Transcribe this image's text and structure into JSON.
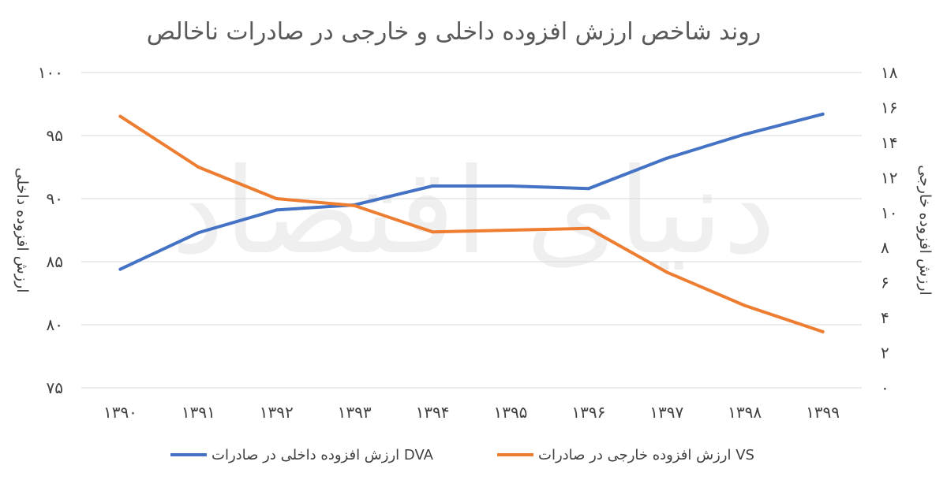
{
  "chart_data": {
    "type": "line",
    "title": "روند شاخص ارزش افزوده داخلی و خارجی در صادرات ناخالص",
    "categories": [
      "۱۳۹۰",
      "۱۳۹۱",
      "۱۳۹۲",
      "۱۳۹۳",
      "۱۳۹۴",
      "۱۳۹۵",
      "۱۳۹۶",
      "۱۳۹۷",
      "۱۳۹۸",
      "۱۳۹۹"
    ],
    "ylabel_left": "ارزش افزوده داخلی",
    "ylabel_right": "ارزش افزوده خارجی",
    "ylim_left": [
      75,
      100
    ],
    "ylim_right": [
      0,
      18
    ],
    "yticks_left": [
      "۱۰۰",
      "۹۵",
      "۹۰",
      "۸۵",
      "۸۰",
      "۷۵"
    ],
    "yticks_right": [
      "۱۸",
      "۱۶",
      "۱۴",
      "۱۲",
      "۱۰",
      "۸",
      "۶",
      "۴",
      "۲",
      "۰"
    ],
    "grid": true,
    "legend_position": "bottom",
    "series": [
      {
        "name": "ارزش افزوده داخلی در صادرات DVA",
        "axis": "left",
        "color": "#4472c4",
        "values": [
          84.4,
          87.3,
          89.1,
          89.5,
          91.0,
          91.0,
          90.8,
          93.2,
          95.1,
          96.7
        ]
      },
      {
        "name": "ارزش افزوده خارجی در صادرات VS",
        "axis": "right",
        "color": "#ed7d31",
        "values": [
          15.5,
          12.6,
          10.8,
          10.4,
          8.9,
          9.0,
          9.1,
          6.6,
          4.7,
          3.2
        ]
      }
    ]
  },
  "watermark": "دنیای اقتصاد"
}
